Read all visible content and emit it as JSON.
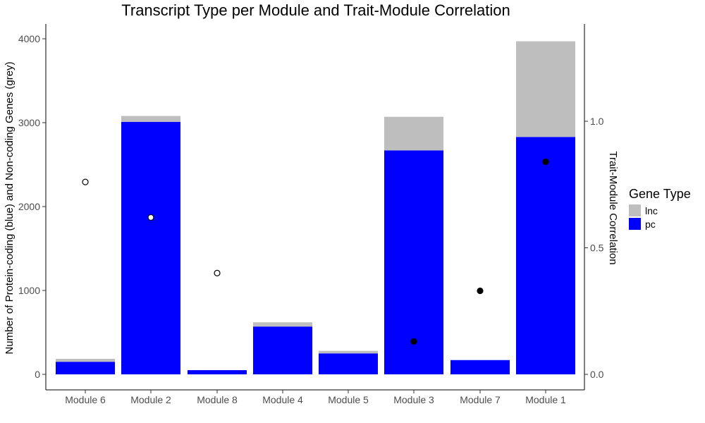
{
  "chart_data": {
    "type": "bar",
    "title": "Transcript Type per Module and Trait-Module Correlation",
    "ylabel": "Number of Protein-coding (blue) and Non-coding Genes (grey)",
    "y2label": "Trait-Module Correlation",
    "categories": [
      "Module 6",
      "Module 2",
      "Module 8",
      "Module 4",
      "Module 5",
      "Module 3",
      "Module 7",
      "Module 1"
    ],
    "stacked": true,
    "series": [
      {
        "name": "pc",
        "color": "#0000ff",
        "values": [
          150,
          3010,
          50,
          570,
          250,
          2670,
          170,
          2830
        ]
      },
      {
        "name": "lnc",
        "color": "#bebebe",
        "values": [
          35,
          70,
          0,
          50,
          30,
          400,
          0,
          1140
        ]
      }
    ],
    "ylim": [
      0,
      4200
    ],
    "yticks": [
      0,
      1000,
      2000,
      3000,
      4000
    ],
    "y2lim": [
      0,
      1.5
    ],
    "y2ticks": [
      "0.0",
      "0.5",
      "1.0"
    ],
    "correlation_points": [
      {
        "category": "Module 6",
        "value": 0.76,
        "filled": false
      },
      {
        "category": "Module 2",
        "value": 0.62,
        "filled": false
      },
      {
        "category": "Module 8",
        "value": 0.4,
        "filled": false
      },
      {
        "category": "Module 4",
        "value": null,
        "filled": false
      },
      {
        "category": "Module 5",
        "value": null,
        "filled": false
      },
      {
        "category": "Module 3",
        "value": 0.13,
        "filled": true
      },
      {
        "category": "Module 7",
        "value": 0.33,
        "filled": true
      },
      {
        "category": "Module 1",
        "value": 0.84,
        "filled": true
      }
    ],
    "legend": {
      "title": "Gene Type",
      "position": "right",
      "items": [
        {
          "label": "lnc",
          "color": "#bebebe"
        },
        {
          "label": "pc",
          "color": "#0000ff"
        }
      ]
    },
    "grid": false
  }
}
